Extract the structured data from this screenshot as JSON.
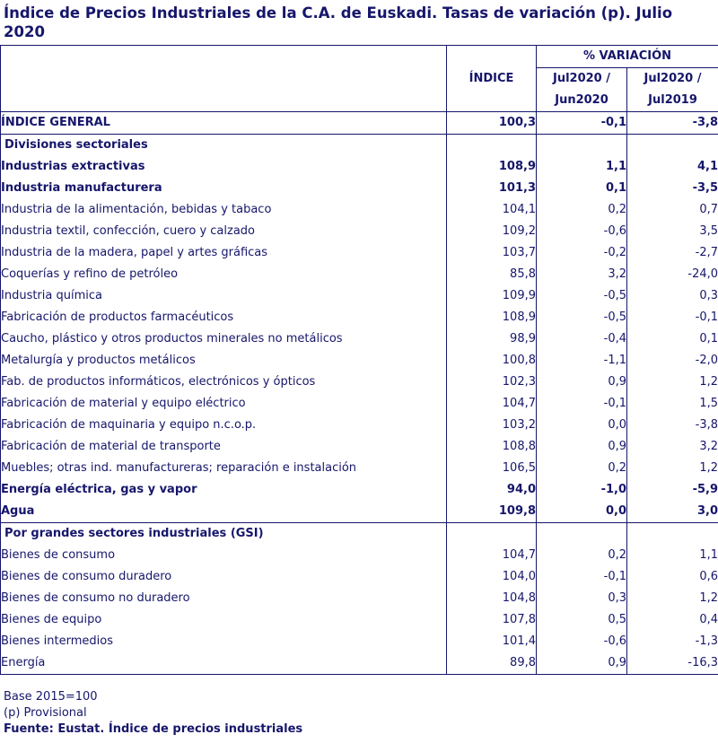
{
  "title": "Índice de Precios Industriales de la C.A. de Euskadi. Tasas de variación (p). Julio 2020",
  "header": {
    "index": "ÍNDICE",
    "variation": "% VARIACIÓN",
    "col_month_line1": "Jul2020 /",
    "col_month_line2": "Jun2020",
    "col_year_line1": "Jul2020 /",
    "col_year_line2": "Jul2019"
  },
  "rows": [
    {
      "label": "ÍNDICE GENERAL",
      "index": "100,3",
      "month": "-0,1",
      "year": "-3,8"
    },
    {
      "label": "Divisiones sectoriales",
      "index": "",
      "month": "",
      "year": ""
    },
    {
      "label": "Industrias extractivas",
      "index": "108,9",
      "month": "1,1",
      "year": "4,1"
    },
    {
      "label": "Industria manufacturera",
      "index": "101,3",
      "month": "0,1",
      "year": "-3,5"
    },
    {
      "label": "Industria de la alimentación, bebidas y tabaco",
      "index": "104,1",
      "month": "0,2",
      "year": "0,7"
    },
    {
      "label": "Industria textil, confección, cuero y calzado",
      "index": "109,2",
      "month": "-0,6",
      "year": "3,5"
    },
    {
      "label": "Industria de la madera, papel y artes gráficas",
      "index": "103,7",
      "month": "-0,2",
      "year": "-2,7"
    },
    {
      "label": "Coquerías y refino de petróleo",
      "index": "85,8",
      "month": "3,2",
      "year": "-24,0"
    },
    {
      "label": "Industria química",
      "index": "109,9",
      "month": "-0,5",
      "year": "0,3"
    },
    {
      "label": "Fabricación de productos farmacéuticos",
      "index": "108,9",
      "month": "-0,5",
      "year": "-0,1"
    },
    {
      "label": "Caucho, plástico y otros productos minerales no metálicos",
      "index": "98,9",
      "month": "-0,4",
      "year": "0,1"
    },
    {
      "label": "Metalurgía y productos metálicos",
      "index": "100,8",
      "month": "-1,1",
      "year": "-2,0"
    },
    {
      "label": "Fab. de productos informáticos, electrónicos y ópticos",
      "index": "102,3",
      "month": "0,9",
      "year": "1,2"
    },
    {
      "label": "Fabricación de material y equipo eléctrico",
      "index": "104,7",
      "month": "-0,1",
      "year": "1,5"
    },
    {
      "label": "Fabricación de maquinaria y equipo n.c.o.p.",
      "index": "103,2",
      "month": "0,0",
      "year": "-3,8"
    },
    {
      "label": "Fabricación de material de transporte",
      "index": "108,8",
      "month": "0,9",
      "year": "3,2"
    },
    {
      "label": "Muebles; otras ind. manufactureras; reparación e instalación",
      "index": "106,5",
      "month": "0,2",
      "year": "1,2"
    },
    {
      "label": "Energía eléctrica, gas y vapor",
      "index": "94,0",
      "month": "-1,0",
      "year": "-5,9"
    },
    {
      "label": "Agua",
      "index": "109,8",
      "month": "0,0",
      "year": "3,0"
    },
    {
      "label": "Por grandes sectores industriales (GSI)",
      "index": "",
      "month": "",
      "year": ""
    },
    {
      "label": "Bienes de consumo",
      "index": "104,7",
      "month": "0,2",
      "year": "1,1"
    },
    {
      "label": "Bienes de consumo duradero",
      "index": "104,0",
      "month": "-0,1",
      "year": "0,6"
    },
    {
      "label": "Bienes de consumo no duradero",
      "index": "104,8",
      "month": "0,3",
      "year": "1,2"
    },
    {
      "label": "Bienes de equipo",
      "index": "107,8",
      "month": "0,5",
      "year": "0,4"
    },
    {
      "label": "Bienes intermedios",
      "index": "101,4",
      "month": "-0,6",
      "year": "-1,3"
    },
    {
      "label": "Energía",
      "index": "89,8",
      "month": "0,9",
      "year": "-16,3"
    }
  ],
  "footnotes": {
    "base": "Base 2015=100",
    "provisional": "(p) Provisional",
    "source": "Fuente: Eustat. Índice de precios industriales"
  }
}
